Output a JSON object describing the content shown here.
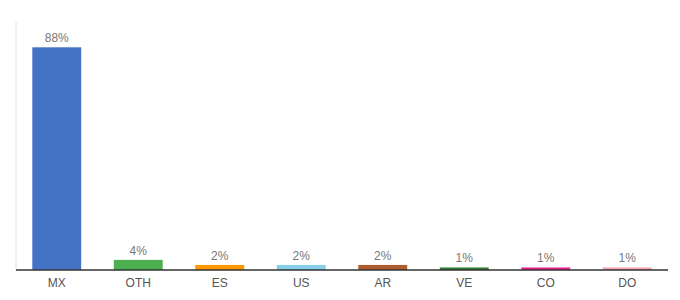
{
  "chart_data": {
    "type": "bar",
    "categories": [
      "MX",
      "OTH",
      "ES",
      "US",
      "AR",
      "VE",
      "CO",
      "DO"
    ],
    "values": [
      88,
      4,
      2,
      2,
      2,
      1,
      1,
      1
    ],
    "value_labels": [
      "88%",
      "4%",
      "2%",
      "2%",
      "2%",
      "1%",
      "1%",
      "1%"
    ],
    "colors": [
      "#4472c4",
      "#4caf50",
      "#ff9800",
      "#87ceeb",
      "#b05a2f",
      "#2e7d32",
      "#e91e8c",
      "#f4a0b0"
    ],
    "ylim": [
      0,
      98
    ],
    "data_labels": true,
    "tick_labels": "x",
    "grid": false
  }
}
